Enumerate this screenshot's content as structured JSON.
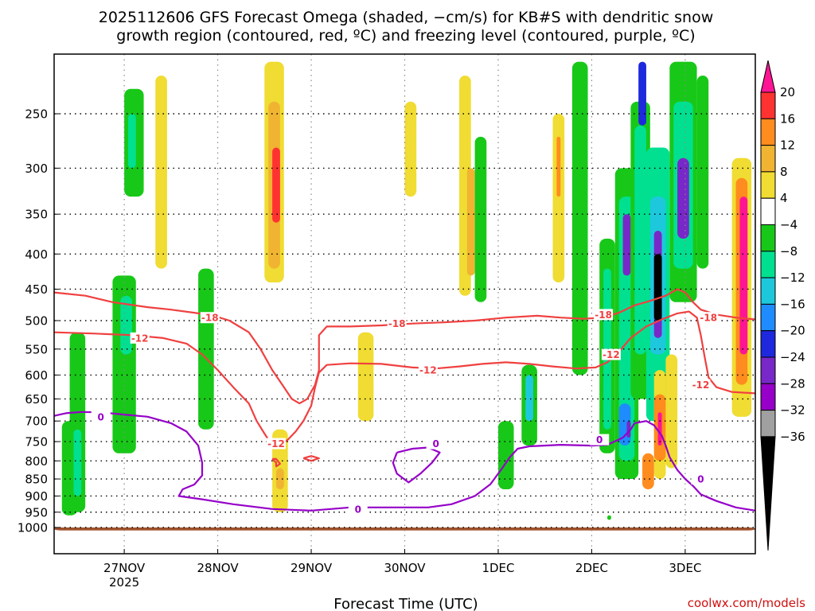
{
  "chart_data": {
    "type": "heatmap",
    "title_line1": "2025112606 GFS Forecast Omega (shaded, −cm/s) for KB#S with dendritic snow",
    "title_line2": "growth region (contoured, red, ºC) and freezing level (contoured, purple, ºC)",
    "xlabel": "Forecast Time (UTC)",
    "credit": "coolwx.com/models",
    "x_unit": "hours since 2025-11-26 06Z",
    "xlim": [
      0,
      180
    ],
    "y_ticks": [
      "250",
      "300",
      "350",
      "400",
      "450",
      "500",
      "550",
      "600",
      "650",
      "700",
      "750",
      "800",
      "850",
      "900",
      "950",
      "1000"
    ],
    "x_ticks": [
      {
        "hour": 18,
        "label": "27NOV",
        "sub": "2025"
      },
      {
        "hour": 42,
        "label": "28NOV",
        "sub": ""
      },
      {
        "hour": 66,
        "label": "29NOV",
        "sub": ""
      },
      {
        "hour": 90,
        "label": "30NOV",
        "sub": ""
      },
      {
        "hour": 114,
        "label": "1DEC",
        "sub": ""
      },
      {
        "hour": 138,
        "label": "2DEC",
        "sub": ""
      },
      {
        "hour": 162,
        "label": "3DEC",
        "sub": ""
      }
    ],
    "colorbar": {
      "labels": [
        "20",
        "16",
        "12",
        "8",
        "4",
        "−4",
        "−8",
        "−12",
        "−16",
        "−20",
        "−24",
        "−28",
        "−32",
        "−36"
      ],
      "colors": [
        "#ff1493",
        "#ff3232",
        "#ff8c1e",
        "#f0b432",
        "#f0dc32",
        "#ffffff",
        "#18c818",
        "#00e090",
        "#1ec8dc",
        "#1e8cff",
        "#1e28dc",
        "#7828c8",
        "#9600c8",
        "#a0a0a0",
        "#000000"
      ]
    },
    "contour_labels": [
      {
        "text": "-18",
        "hour": 40,
        "p": 495,
        "color": "#f04040"
      },
      {
        "text": "-12",
        "hour": 22,
        "p": 530,
        "color": "#f04040"
      },
      {
        "text": "-18",
        "hour": 88,
        "p": 505,
        "color": "#f04040"
      },
      {
        "text": "-12",
        "hour": 96,
        "p": 590,
        "color": "#f04040"
      },
      {
        "text": "-18",
        "hour": 141,
        "p": 490,
        "color": "#f04040"
      },
      {
        "text": "-12",
        "hour": 143,
        "p": 560,
        "color": "#f04040"
      },
      {
        "text": "-18",
        "hour": 168,
        "p": 495,
        "color": "#f04040"
      },
      {
        "text": "-12",
        "hour": 166,
        "p": 620,
        "color": "#f04040"
      },
      {
        "text": "-12",
        "hour": 57,
        "p": 755,
        "color": "#f04040"
      },
      {
        "text": "0",
        "hour": 12,
        "p": 690,
        "color": "#9600c8"
      },
      {
        "text": "0",
        "hour": 78,
        "p": 940,
        "color": "#9600c8"
      },
      {
        "text": "0",
        "hour": 98,
        "p": 755,
        "color": "#9600c8"
      },
      {
        "text": "0",
        "hour": 140,
        "p": 745,
        "color": "#9600c8"
      },
      {
        "text": "0",
        "hour": 166,
        "p": 850,
        "color": "#9600c8"
      }
    ],
    "dgz_contours": [
      {
        "level": -18,
        "points": [
          [
            0,
            455
          ],
          [
            8,
            460
          ],
          [
            15,
            470
          ],
          [
            24,
            478
          ],
          [
            30,
            482
          ],
          [
            36,
            487
          ],
          [
            41,
            492
          ],
          [
            45,
            500
          ],
          [
            50,
            520
          ],
          [
            53,
            550
          ],
          [
            56,
            590
          ],
          [
            59,
            625
          ],
          [
            61,
            650
          ],
          [
            63,
            660
          ],
          [
            65,
            650
          ],
          [
            67,
            620
          ],
          [
            68,
            590
          ],
          [
            68,
            560
          ],
          [
            68,
            525
          ],
          [
            70,
            510
          ],
          [
            76,
            510
          ],
          [
            84,
            508
          ],
          [
            92,
            505
          ],
          [
            100,
            503
          ],
          [
            108,
            500
          ],
          [
            116,
            495
          ],
          [
            124,
            492
          ],
          [
            130,
            495
          ],
          [
            136,
            497
          ],
          [
            141,
            495
          ],
          [
            145,
            487
          ],
          [
            149,
            475
          ],
          [
            153,
            468
          ],
          [
            157,
            460
          ],
          [
            160,
            450
          ],
          [
            162,
            455
          ],
          [
            164,
            470
          ],
          [
            166,
            482
          ],
          [
            170,
            490
          ],
          [
            175,
            495
          ],
          [
            180,
            498
          ]
        ]
      },
      {
        "level": -12,
        "points": [
          [
            0,
            520
          ],
          [
            10,
            522
          ],
          [
            20,
            525
          ],
          [
            28,
            530
          ],
          [
            34,
            540
          ],
          [
            38,
            560
          ],
          [
            42,
            590
          ],
          [
            46,
            625
          ],
          [
            50,
            660
          ],
          [
            52,
            700
          ],
          [
            54,
            730
          ],
          [
            56,
            760
          ]
        ]
      },
      {
        "level": -12,
        "points": [
          [
            58,
            760
          ],
          [
            60,
            745
          ],
          [
            62,
            725
          ],
          [
            64,
            700
          ],
          [
            66,
            665
          ],
          [
            67,
            625
          ],
          [
            68,
            595
          ],
          [
            70,
            580
          ],
          [
            76,
            577
          ],
          [
            84,
            578
          ],
          [
            92,
            585
          ],
          [
            98,
            587
          ],
          [
            104,
            583
          ],
          [
            110,
            578
          ],
          [
            116,
            575
          ],
          [
            122,
            578
          ],
          [
            128,
            583
          ],
          [
            134,
            587
          ],
          [
            139,
            585
          ],
          [
            142,
            575
          ],
          [
            145,
            555
          ],
          [
            148,
            530
          ],
          [
            152,
            510
          ],
          [
            156,
            498
          ],
          [
            160,
            488
          ],
          [
            163,
            485
          ],
          [
            165,
            495
          ],
          [
            166,
            525
          ],
          [
            167,
            565
          ],
          [
            168,
            605
          ],
          [
            170,
            625
          ],
          [
            174,
            635
          ],
          [
            180,
            638
          ]
        ]
      },
      {
        "level": -12,
        "points": [
          [
            56,
            795
          ],
          [
            57,
            805
          ],
          [
            57,
            815
          ],
          [
            58,
            808
          ],
          [
            57,
            795
          ],
          [
            56,
            795
          ]
        ]
      },
      {
        "level": -12,
        "points": [
          [
            64,
            793
          ],
          [
            66,
            787
          ],
          [
            68,
            793
          ],
          [
            66,
            800
          ],
          [
            64,
            793
          ]
        ]
      }
    ],
    "freezing_contours": [
      {
        "level": 0,
        "points": [
          [
            0,
            688
          ],
          [
            3,
            682
          ],
          [
            7,
            679
          ],
          [
            12,
            680
          ],
          [
            18,
            685
          ],
          [
            24,
            690
          ],
          [
            30,
            705
          ],
          [
            34,
            725
          ],
          [
            37,
            760
          ],
          [
            38,
            805
          ],
          [
            38,
            840
          ],
          [
            36,
            866
          ],
          [
            33,
            880
          ],
          [
            32,
            900
          ],
          [
            38,
            910
          ],
          [
            46,
            925
          ],
          [
            56,
            940
          ],
          [
            66,
            945
          ],
          [
            76,
            935
          ],
          [
            84,
            935
          ],
          [
            96,
            935
          ],
          [
            102,
            925
          ],
          [
            108,
            900
          ],
          [
            112,
            865
          ],
          [
            115,
            820
          ],
          [
            117,
            790
          ],
          [
            119,
            768
          ],
          [
            122,
            762
          ],
          [
            130,
            758
          ],
          [
            138,
            760
          ],
          [
            142,
            758
          ],
          [
            146,
            740
          ],
          [
            148,
            720
          ],
          [
            149,
            705
          ],
          [
            152,
            700
          ],
          [
            154,
            710
          ],
          [
            156,
            735
          ],
          [
            157,
            760
          ],
          [
            158,
            790
          ],
          [
            160,
            825
          ],
          [
            162,
            850
          ],
          [
            164,
            870
          ],
          [
            166,
            895
          ],
          [
            170,
            915
          ],
          [
            175,
            935
          ],
          [
            180,
            945
          ]
        ]
      },
      {
        "level": 0,
        "points": [
          [
            88,
            778
          ],
          [
            92,
            768
          ],
          [
            96,
            765
          ],
          [
            99,
            778
          ],
          [
            97,
            805
          ],
          [
            94,
            835
          ],
          [
            91,
            860
          ],
          [
            88,
            835
          ],
          [
            87,
            805
          ],
          [
            88,
            778
          ]
        ]
      }
    ],
    "shading": [
      {
        "h0": 0,
        "h1": 180,
        "p0": 1000,
        "p1": 1010,
        "color": "#a0522d"
      },
      {
        "h0": 2,
        "h1": 6,
        "p0": 700,
        "p1": 960,
        "color": "#18c818"
      },
      {
        "h0": 4,
        "h1": 8,
        "p0": 520,
        "p1": 950,
        "color": "#18c818"
      },
      {
        "h0": 5,
        "h1": 7,
        "p0": 720,
        "p1": 900,
        "color": "#00e090"
      },
      {
        "h0": 15,
        "h1": 21,
        "p0": 430,
        "p1": 780,
        "color": "#18c818"
      },
      {
        "h0": 17,
        "h1": 20,
        "p0": 460,
        "p1": 560,
        "color": "#00e090"
      },
      {
        "h0": 18,
        "h1": 23,
        "p0": 230,
        "p1": 330,
        "color": "#18c818"
      },
      {
        "h0": 19,
        "h1": 21,
        "p0": 250,
        "p1": 300,
        "color": "#00e090"
      },
      {
        "h0": 26,
        "h1": 29,
        "p0": 220,
        "p1": 420,
        "color": "#f0dc32"
      },
      {
        "h0": 37,
        "h1": 41,
        "p0": 420,
        "p1": 720,
        "color": "#18c818"
      },
      {
        "h0": 54,
        "h1": 59,
        "p0": 210,
        "p1": 440,
        "color": "#f0dc32"
      },
      {
        "h0": 55,
        "h1": 58,
        "p0": 240,
        "p1": 420,
        "color": "#f0b432"
      },
      {
        "h0": 56,
        "h1": 58,
        "p0": 280,
        "p1": 360,
        "color": "#ff3232"
      },
      {
        "h0": 56,
        "h1": 60,
        "p0": 720,
        "p1": 950,
        "color": "#f0dc32"
      },
      {
        "h0": 57,
        "h1": 59,
        "p0": 820,
        "p1": 880,
        "color": "#f0b432"
      },
      {
        "h0": 78,
        "h1": 82,
        "p0": 520,
        "p1": 700,
        "color": "#f0dc32"
      },
      {
        "h0": 90,
        "h1": 93,
        "p0": 240,
        "p1": 330,
        "color": "#f0dc32"
      },
      {
        "h0": 104,
        "h1": 107,
        "p0": 220,
        "p1": 460,
        "color": "#f0dc32"
      },
      {
        "h0": 106,
        "h1": 108,
        "p0": 300,
        "p1": 430,
        "color": "#f0b432"
      },
      {
        "h0": 108,
        "h1": 111,
        "p0": 270,
        "p1": 470,
        "color": "#18c818"
      },
      {
        "h0": 114,
        "h1": 118,
        "p0": 700,
        "p1": 880,
        "color": "#18c818"
      },
      {
        "h0": 120,
        "h1": 124,
        "p0": 580,
        "p1": 760,
        "color": "#18c818"
      },
      {
        "h0": 121,
        "h1": 123,
        "p0": 600,
        "p1": 700,
        "color": "#1ec8dc"
      },
      {
        "h0": 128,
        "h1": 131,
        "p0": 250,
        "p1": 440,
        "color": "#f0dc32"
      },
      {
        "h0": 129,
        "h1": 130,
        "p0": 270,
        "p1": 330,
        "color": "#ff8c1e"
      },
      {
        "h0": 133,
        "h1": 137,
        "p0": 210,
        "p1": 600,
        "color": "#18c818"
      },
      {
        "h0": 140,
        "h1": 144,
        "p0": 380,
        "p1": 780,
        "color": "#18c818"
      },
      {
        "h0": 141,
        "h1": 143,
        "p0": 420,
        "p1": 720,
        "color": "#00e090"
      },
      {
        "h0": 144,
        "h1": 150,
        "p0": 300,
        "p1": 850,
        "color": "#18c818"
      },
      {
        "h0": 145,
        "h1": 149,
        "p0": 330,
        "p1": 800,
        "color": "#00e090"
      },
      {
        "h0": 146,
        "h1": 148,
        "p0": 350,
        "p1": 430,
        "color": "#7828c8"
      },
      {
        "h0": 145,
        "h1": 148,
        "p0": 660,
        "p1": 760,
        "color": "#1e8cff"
      },
      {
        "h0": 147,
        "h1": 148,
        "p0": 700,
        "p1": 740,
        "color": "#7828c8"
      },
      {
        "h0": 148,
        "h1": 153,
        "p0": 240,
        "p1": 650,
        "color": "#18c818"
      },
      {
        "h0": 149,
        "h1": 152,
        "p0": 260,
        "p1": 560,
        "color": "#00e090"
      },
      {
        "h0": 150,
        "h1": 152,
        "p0": 210,
        "p1": 260,
        "color": "#1e28dc"
      },
      {
        "h0": 152,
        "h1": 158,
        "p0": 280,
        "p1": 700,
        "color": "#00e090"
      },
      {
        "h0": 153,
        "h1": 157,
        "p0": 330,
        "p1": 560,
        "color": "#1ec8dc"
      },
      {
        "h0": 154,
        "h1": 156,
        "p0": 370,
        "p1": 530,
        "color": "#7828c8"
      },
      {
        "h0": 154,
        "h1": 156,
        "p0": 400,
        "p1": 500,
        "color": "#000000"
      },
      {
        "h0": 154,
        "h1": 157,
        "p0": 590,
        "p1": 850,
        "color": "#f0dc32"
      },
      {
        "h0": 154,
        "h1": 157,
        "p0": 640,
        "p1": 800,
        "color": "#ff8c1e"
      },
      {
        "h0": 155,
        "h1": 156,
        "p0": 680,
        "p1": 760,
        "color": "#ff1493"
      },
      {
        "h0": 151,
        "h1": 154,
        "p0": 780,
        "p1": 880,
        "color": "#ff8c1e"
      },
      {
        "h0": 157,
        "h1": 160,
        "p0": 560,
        "p1": 820,
        "color": "#f0dc32"
      },
      {
        "h0": 158,
        "h1": 165,
        "p0": 210,
        "p1": 470,
        "color": "#18c818"
      },
      {
        "h0": 159,
        "h1": 164,
        "p0": 240,
        "p1": 420,
        "color": "#00e090"
      },
      {
        "h0": 160,
        "h1": 163,
        "p0": 290,
        "p1": 380,
        "color": "#7828c8"
      },
      {
        "h0": 165,
        "h1": 168,
        "p0": 220,
        "p1": 420,
        "color": "#18c818"
      },
      {
        "h0": 174,
        "h1": 179,
        "p0": 290,
        "p1": 690,
        "color": "#f0dc32"
      },
      {
        "h0": 175,
        "h1": 178,
        "p0": 310,
        "p1": 620,
        "color": "#ff8c1e"
      },
      {
        "h0": 176,
        "h1": 178,
        "p0": 330,
        "p1": 560,
        "color": "#ff1493"
      },
      {
        "h0": 142,
        "h1": 143,
        "p0": 960,
        "p1": 975,
        "color": "#18c818"
      }
    ]
  }
}
